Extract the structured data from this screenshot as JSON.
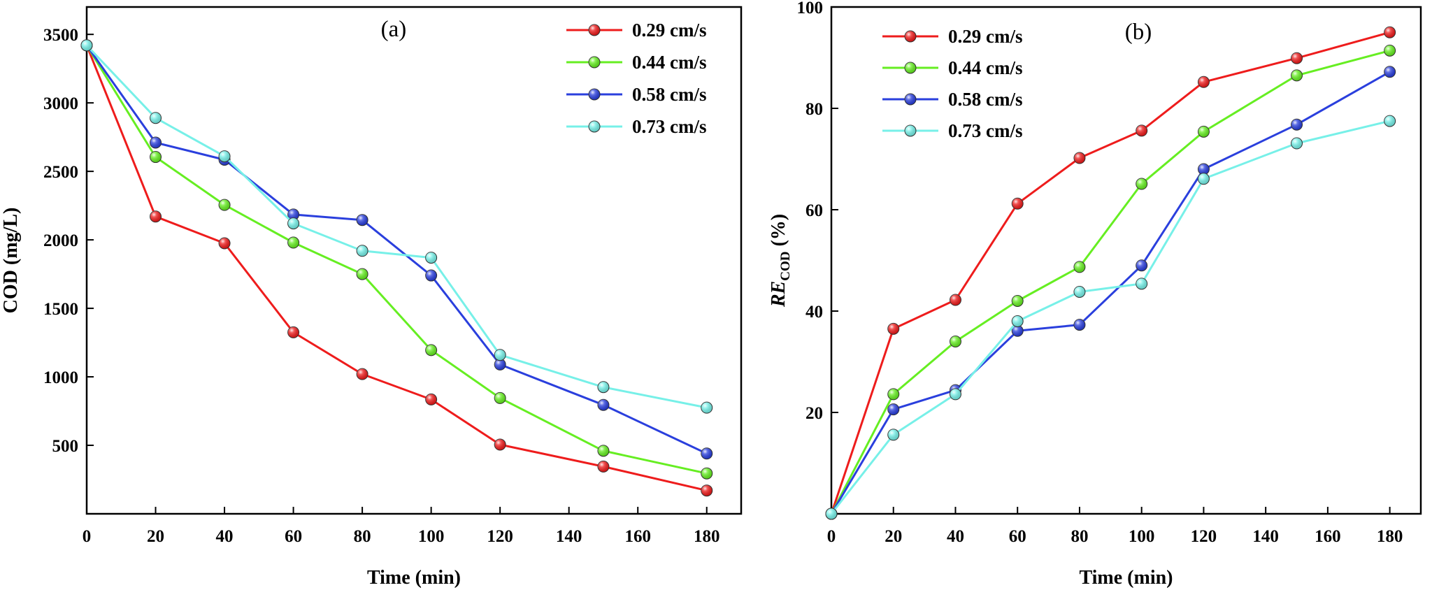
{
  "chart_data": [
    {
      "type": "line",
      "panel_label": "(a)",
      "xlabel": "Time (min)",
      "ylabel": "COD (mg/L)",
      "xlim": [
        0,
        190
      ],
      "ylim": [
        0,
        3700
      ],
      "xticks": [
        0,
        20,
        40,
        60,
        80,
        100,
        120,
        140,
        160,
        180
      ],
      "yticks": [
        500,
        1000,
        1500,
        2000,
        2500,
        3000,
        3500
      ],
      "legend_position": "top-right",
      "x": [
        0,
        20,
        40,
        60,
        80,
        100,
        120,
        150,
        180
      ],
      "series": [
        {
          "name": "0.29 cm/s",
          "color": "#ee1c1c",
          "values": [
            3420,
            2170,
            1975,
            1325,
            1020,
            835,
            505,
            345,
            170
          ]
        },
        {
          "name": "0.44 cm/s",
          "color": "#66ee22",
          "values": [
            3420,
            2605,
            2255,
            1980,
            1750,
            1195,
            845,
            460,
            295
          ]
        },
        {
          "name": "0.58 cm/s",
          "color": "#2a3fdd",
          "values": [
            3420,
            2710,
            2585,
            2185,
            2145,
            1740,
            1090,
            795,
            440
          ]
        },
        {
          "name": "0.73 cm/s",
          "color": "#77f0e8",
          "values": [
            3420,
            2890,
            2610,
            2120,
            1920,
            1870,
            1160,
            925,
            775
          ]
        }
      ]
    },
    {
      "type": "line",
      "panel_label": "(b)",
      "xlabel": "Time (min)",
      "ylabel_main": "RE",
      "ylabel_sub": "COD",
      "ylabel_unit": " (%)",
      "xlim": [
        0,
        190
      ],
      "ylim": [
        0,
        100
      ],
      "xticks": [
        0,
        20,
        40,
        60,
        80,
        100,
        120,
        140,
        160,
        180
      ],
      "yticks": [
        20,
        40,
        60,
        80,
        100
      ],
      "legend_position": "top-left",
      "x": [
        0,
        20,
        40,
        60,
        80,
        100,
        120,
        150,
        180
      ],
      "series": [
        {
          "name": "0.29 cm/s",
          "color": "#ee1c1c",
          "values": [
            0,
            36.5,
            42.2,
            61.2,
            70.2,
            75.6,
            85.2,
            89.9,
            95.0
          ]
        },
        {
          "name": "0.44 cm/s",
          "color": "#66ee22",
          "values": [
            0,
            23.6,
            34.0,
            42.0,
            48.7,
            65.1,
            75.4,
            86.5,
            91.4
          ]
        },
        {
          "name": "0.58 cm/s",
          "color": "#2a3fdd",
          "values": [
            0,
            20.6,
            24.4,
            36.1,
            37.3,
            49.0,
            68.0,
            76.8,
            87.2
          ]
        },
        {
          "name": "0.73 cm/s",
          "color": "#77f0e8",
          "values": [
            0,
            15.6,
            23.6,
            38.0,
            43.8,
            45.4,
            66.1,
            73.1,
            77.5
          ]
        }
      ]
    }
  ]
}
